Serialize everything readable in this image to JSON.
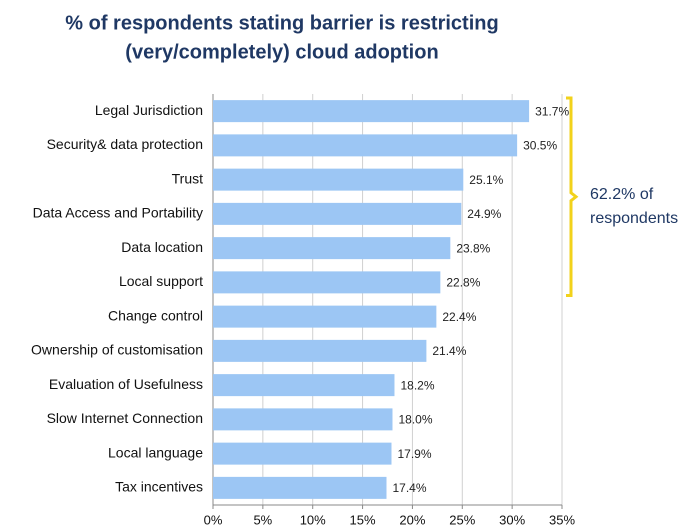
{
  "chart_data": {
    "type": "bar",
    "orientation": "horizontal",
    "title": [
      "% of respondents stating barrier is restricting",
      "(very/completely) cloud adoption"
    ],
    "categories": [
      "Legal Jurisdiction",
      "Security& data protection",
      "Trust",
      "Data Access and Portability",
      "Data location",
      "Local support",
      "Change control",
      "Ownership of customisation",
      "Evaluation of Usefulness",
      "Slow Internet Connection",
      "Local language",
      "Tax incentives"
    ],
    "values": [
      31.7,
      30.5,
      25.1,
      24.9,
      23.8,
      22.8,
      22.4,
      21.4,
      18.2,
      18.0,
      17.9,
      17.4
    ],
    "value_labels": [
      "31.7%",
      "30.5%",
      "25.1%",
      "24.9%",
      "23.8%",
      "22.8%",
      "22.4%",
      "21.4%",
      "18.2%",
      "18.0%",
      "17.9%",
      "17.4%"
    ],
    "color": "#9cc6f4",
    "xlim": [
      0,
      35
    ],
    "xticks": [
      {
        "value": 0,
        "label": "0%"
      },
      {
        "value": 5,
        "label": "5%"
      },
      {
        "value": 10,
        "label": "10%"
      },
      {
        "value": 15,
        "label": "15%"
      },
      {
        "value": 20,
        "label": "20%"
      },
      {
        "value": 25,
        "label": "25%"
      },
      {
        "value": 30,
        "label": "30%"
      },
      {
        "value": 35,
        "label": "35%"
      }
    ],
    "grid": true,
    "annotation": [
      "62.2% of",
      "respondents"
    ],
    "annotation_color": "#f2d21b"
  }
}
